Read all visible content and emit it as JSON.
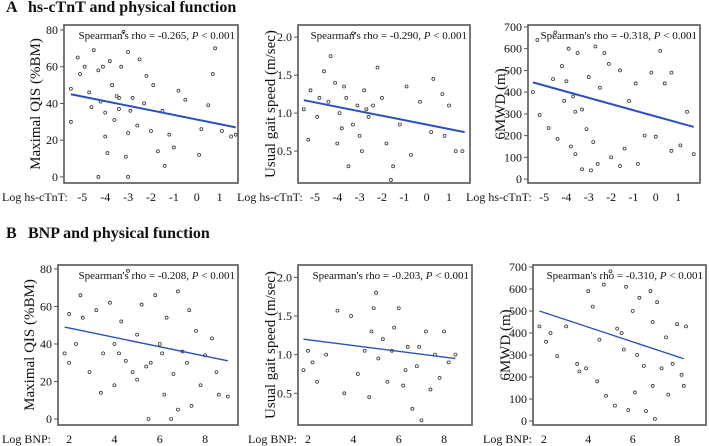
{
  "panels": {
    "A": {
      "letter": "A",
      "title": "hs-cTnT and physical function"
    },
    "B": {
      "letter": "B",
      "title": "BNP and physical function"
    }
  },
  "colors": {
    "regression_line": "#2a4fc0",
    "marker": "#333333",
    "frame": "#555555"
  },
  "chart_data": [
    {
      "id": "A1",
      "type": "scatter",
      "panel": "A",
      "xlabel": "Log hs-cTnT:",
      "ylabel": "Maximal QIS (%BM)",
      "xlim": [
        -5.8,
        1.8
      ],
      "ylim": [
        -3.3,
        82.7
      ],
      "xticks": [
        "-5",
        "-4",
        "-3",
        "-2",
        "-1",
        "0",
        "1"
      ],
      "yticks": [
        "0",
        "20",
        "40",
        "60",
        "80"
      ],
      "annotation": {
        "rho_text": "Spearman's rho = -0.265, ",
        "p_label": "P",
        "p_text": " < 0.001"
      },
      "regression": [
        [
          -5.5,
          45
        ],
        [
          1.7,
          27
        ]
      ],
      "points": [
        [
          -5.5,
          48
        ],
        [
          -5.5,
          30
        ],
        [
          -5.2,
          65
        ],
        [
          -5.1,
          56
        ],
        [
          -4.9,
          60
        ],
        [
          -4.7,
          46
        ],
        [
          -4.5,
          69
        ],
        [
          -4.3,
          58
        ],
        [
          -4.2,
          41
        ],
        [
          -4.1,
          60
        ],
        [
          -4.0,
          22
        ],
        [
          -4.0,
          35
        ],
        [
          -3.8,
          63
        ],
        [
          -3.7,
          50
        ],
        [
          -3.6,
          31
        ],
        [
          -3.5,
          44
        ],
        [
          -3.4,
          37
        ],
        [
          -3.3,
          60
        ],
        [
          -3.2,
          79
        ],
        [
          -3.1,
          11
        ],
        [
          -3.0,
          68
        ],
        [
          -3.0,
          24
        ],
        [
          -2.8,
          43
        ],
        [
          -2.6,
          28
        ],
        [
          -2.5,
          64
        ],
        [
          -2.3,
          40
        ],
        [
          -2.2,
          55
        ],
        [
          -2.0,
          25
        ],
        [
          -1.9,
          50
        ],
        [
          -1.7,
          14
        ],
        [
          -1.5,
          36
        ],
        [
          -1.4,
          6
        ],
        [
          -1.2,
          23
        ],
        [
          -1.0,
          16
        ],
        [
          -0.8,
          47
        ],
        [
          -0.5,
          42
        ],
        [
          0.1,
          12
        ],
        [
          0.2,
          26
        ],
        [
          0.5,
          39
        ],
        [
          0.7,
          56
        ],
        [
          0.8,
          70
        ],
        [
          1.1,
          25
        ],
        [
          1.5,
          22
        ],
        [
          1.7,
          23
        ],
        [
          -4.3,
          0
        ],
        [
          -3.0,
          0
        ],
        [
          -3.9,
          13
        ],
        [
          -2.9,
          36
        ],
        [
          -4.6,
          38
        ],
        [
          -3.4,
          43
        ]
      ]
    },
    {
      "id": "A2",
      "type": "scatter",
      "panel": "A",
      "xlabel": "Log hs-cTnT:",
      "ylabel": "Usual gait speed (m/sec)",
      "xlim": [
        -5.76,
        1.94
      ],
      "ylim": [
        0.08,
        2.16
      ],
      "xticks": [
        "-5",
        "-4",
        "-3",
        "-2",
        "-1",
        "0",
        "1"
      ],
      "yticks": [
        "0.5",
        "1.0",
        "1.5",
        "2.0"
      ],
      "annotation": {
        "rho_text": "Spearman's rho = -0.290, ",
        "p_label": "P",
        "p_text": " < 0.001"
      },
      "regression": [
        [
          -5.5,
          1.17
        ],
        [
          1.7,
          0.75
        ]
      ],
      "points": [
        [
          -5.5,
          1.05
        ],
        [
          -5.3,
          0.65
        ],
        [
          -5.2,
          1.3
        ],
        [
          -4.9,
          0.95
        ],
        [
          -4.6,
          1.55
        ],
        [
          -4.3,
          1.75
        ],
        [
          -4.1,
          1.4
        ],
        [
          -4.0,
          0.6
        ],
        [
          -3.9,
          1.0
        ],
        [
          -3.7,
          1.35
        ],
        [
          -3.6,
          1.2
        ],
        [
          -3.5,
          0.3
        ],
        [
          -3.3,
          2.05
        ],
        [
          -3.3,
          0.85
        ],
        [
          -3.1,
          1.1
        ],
        [
          -3.0,
          0.7
        ],
        [
          -2.8,
          1.3
        ],
        [
          -2.6,
          0.95
        ],
        [
          -2.4,
          1.1
        ],
        [
          -2.2,
          1.6
        ],
        [
          -2.0,
          1.2
        ],
        [
          -1.8,
          0.6
        ],
        [
          -1.6,
          0.12
        ],
        [
          -1.5,
          0.3
        ],
        [
          -1.2,
          0.85
        ],
        [
          -0.9,
          1.35
        ],
        [
          -0.7,
          0.45
        ],
        [
          -0.3,
          1.15
        ],
        [
          0.2,
          0.75
        ],
        [
          0.3,
          1.45
        ],
        [
          0.7,
          1.25
        ],
        [
          0.8,
          0.7
        ],
        [
          1.0,
          1.1
        ],
        [
          1.3,
          0.5
        ],
        [
          1.6,
          0.5
        ],
        [
          -4.4,
          1.15
        ],
        [
          -3.8,
          0.8
        ],
        [
          -2.7,
          1.05
        ],
        [
          -2.9,
          0.5
        ],
        [
          -4.8,
          1.2
        ]
      ]
    },
    {
      "id": "A3",
      "type": "scatter",
      "panel": "A",
      "xlabel": "Log hs-cTnT:",
      "ylabel": "6MWD (m)",
      "xlim": [
        -5.72,
        1.98
      ],
      "ylim": [
        -18,
        709
      ],
      "xticks": [
        "-5",
        "-4",
        "-3",
        "-2",
        "-1",
        "0",
        "1"
      ],
      "yticks": [
        "0",
        "100",
        "200",
        "300",
        "400",
        "500",
        "600",
        "700"
      ],
      "annotation": {
        "rho_text": "Spearman's rho = -0.318, ",
        "p_label": "P",
        "p_text": " < 0.001"
      },
      "regression": [
        [
          -5.5,
          445
        ],
        [
          1.7,
          240
        ]
      ],
      "points": [
        [
          -5.5,
          400
        ],
        [
          -5.3,
          640
        ],
        [
          -5.2,
          295
        ],
        [
          -4.8,
          235
        ],
        [
          -4.5,
          675
        ],
        [
          -4.4,
          185
        ],
        [
          -4.2,
          520
        ],
        [
          -4.0,
          450
        ],
        [
          -3.9,
          600
        ],
        [
          -3.8,
          150
        ],
        [
          -3.7,
          380
        ],
        [
          -3.6,
          115
        ],
        [
          -3.5,
          580
        ],
        [
          -3.3,
          45
        ],
        [
          -3.3,
          320
        ],
        [
          -3.1,
          230
        ],
        [
          -2.9,
          40
        ],
        [
          -2.8,
          170
        ],
        [
          -2.7,
          610
        ],
        [
          -2.6,
          70
        ],
        [
          -2.5,
          420
        ],
        [
          -2.3,
          580
        ],
        [
          -2.1,
          530
        ],
        [
          -2.0,
          100
        ],
        [
          -1.6,
          500
        ],
        [
          -1.6,
          60
        ],
        [
          -1.4,
          140
        ],
        [
          -1.2,
          360
        ],
        [
          -0.9,
          440
        ],
        [
          -0.8,
          70
        ],
        [
          -0.5,
          200
        ],
        [
          -0.2,
          490
        ],
        [
          0.0,
          195
        ],
        [
          0.2,
          590
        ],
        [
          0.4,
          440
        ],
        [
          0.7,
          490
        ],
        [
          0.7,
          130
        ],
        [
          1.1,
          155
        ],
        [
          1.4,
          310
        ],
        [
          1.7,
          115
        ],
        [
          -3.6,
          310
        ],
        [
          -4.1,
          360
        ],
        [
          -3.0,
          470
        ],
        [
          -4.6,
          460
        ]
      ]
    },
    {
      "id": "B1",
      "type": "scatter",
      "panel": "B",
      "xlabel": "Log BNP:",
      "ylabel": "Maximal QIS (%BM)",
      "xlim": [
        1.51,
        9.45
      ],
      "ylim": [
        -3.2,
        82.1
      ],
      "xticks": [
        "2",
        "4",
        "6",
        "8"
      ],
      "yticks": [
        "0",
        "20",
        "40",
        "60",
        "80"
      ],
      "annotation": {
        "rho_text": "Spearman's rho = -0.208, ",
        "p_label": "P",
        "p_text": " < 0.001"
      },
      "regression": [
        [
          1.8,
          49
        ],
        [
          9.0,
          31
        ]
      ],
      "points": [
        [
          1.8,
          35
        ],
        [
          2.0,
          30
        ],
        [
          2.0,
          56
        ],
        [
          2.3,
          40
        ],
        [
          2.5,
          66
        ],
        [
          2.6,
          54
        ],
        [
          2.9,
          25
        ],
        [
          3.2,
          58
        ],
        [
          3.4,
          14
        ],
        [
          3.5,
          35
        ],
        [
          3.8,
          62
        ],
        [
          4.0,
          40
        ],
        [
          4.0,
          18
        ],
        [
          4.3,
          52
        ],
        [
          4.6,
          79
        ],
        [
          4.8,
          25
        ],
        [
          5.0,
          45
        ],
        [
          5.2,
          61
        ],
        [
          5.5,
          0
        ],
        [
          5.6,
          30
        ],
        [
          5.8,
          66
        ],
        [
          6.0,
          40
        ],
        [
          6.2,
          13
        ],
        [
          6.3,
          54
        ],
        [
          6.5,
          0
        ],
        [
          6.6,
          24
        ],
        [
          6.8,
          68
        ],
        [
          6.8,
          5
        ],
        [
          7.0,
          36
        ],
        [
          7.3,
          58
        ],
        [
          7.4,
          7
        ],
        [
          7.6,
          47
        ],
        [
          7.8,
          18
        ],
        [
          8.0,
          34
        ],
        [
          8.3,
          43
        ],
        [
          8.6,
          13
        ],
        [
          9.0,
          12
        ],
        [
          8.5,
          25
        ],
        [
          4.5,
          31
        ],
        [
          5.4,
          28
        ],
        [
          6.1,
          35
        ],
        [
          5.0,
          21
        ],
        [
          7.2,
          30
        ],
        [
          4.2,
          35
        ]
      ]
    },
    {
      "id": "B2",
      "type": "scatter",
      "panel": "B",
      "xlabel": "Log BNP:",
      "ylabel": "Usual gait speed (m/sec)",
      "xlim": [
        1.56,
        9.23
      ],
      "ylim": [
        0.09,
        2.16
      ],
      "xticks": [
        "2",
        "4",
        "6",
        "8"
      ],
      "yticks": [
        "0.5",
        "1.0",
        "1.5",
        "2.0"
      ],
      "annotation": {
        "rho_text": "Spearman's rho = -0.203, ",
        "p_label": "P",
        "p_text": " < 0.001"
      },
      "regression": [
        [
          1.8,
          1.2
        ],
        [
          8.5,
          0.95
        ]
      ],
      "points": [
        [
          1.8,
          0.8
        ],
        [
          2.0,
          1.05
        ],
        [
          2.2,
          0.9
        ],
        [
          2.4,
          0.65
        ],
        [
          2.8,
          1.0
        ],
        [
          3.3,
          1.57
        ],
        [
          3.6,
          0.5
        ],
        [
          3.9,
          1.5
        ],
        [
          4.2,
          0.75
        ],
        [
          4.5,
          1.05
        ],
        [
          4.7,
          0.45
        ],
        [
          4.9,
          1.6
        ],
        [
          5.0,
          1.8
        ],
        [
          5.3,
          1.2
        ],
        [
          5.5,
          0.65
        ],
        [
          5.8,
          1.35
        ],
        [
          6.0,
          1.6
        ],
        [
          6.2,
          0.6
        ],
        [
          6.4,
          1.1
        ],
        [
          6.6,
          0.3
        ],
        [
          6.8,
          0.85
        ],
        [
          7.0,
          0.15
        ],
        [
          7.2,
          1.3
        ],
        [
          7.4,
          0.55
        ],
        [
          7.6,
          1.0
        ],
        [
          7.8,
          0.7
        ],
        [
          8.0,
          1.3
        ],
        [
          8.2,
          0.9
        ],
        [
          8.5,
          1.0
        ],
        [
          5.1,
          0.95
        ],
        [
          5.7,
          1.05
        ],
        [
          6.3,
          0.8
        ],
        [
          4.8,
          1.3
        ],
        [
          6.9,
          1.1
        ]
      ]
    },
    {
      "id": "B3",
      "type": "scatter",
      "panel": "B",
      "xlabel": "Log BNP:",
      "ylabel": "6MWD (m)",
      "xlim": [
        1.51,
        9.3
      ],
      "ylim": [
        -18,
        709
      ],
      "xticks": [
        "2",
        "4",
        "6",
        "8"
      ],
      "yticks": [
        "0",
        "100",
        "200",
        "300",
        "400",
        "500",
        "600",
        "700"
      ],
      "annotation": {
        "rho_text": "Spearman's rho = -0.310, ",
        "p_label": "P",
        "p_text": " < 0.001"
      },
      "regression": [
        [
          1.8,
          500
        ],
        [
          8.3,
          283
        ]
      ],
      "points": [
        [
          1.8,
          430
        ],
        [
          2.1,
          360
        ],
        [
          2.3,
          400
        ],
        [
          2.6,
          295
        ],
        [
          3.0,
          430
        ],
        [
          3.5,
          260
        ],
        [
          3.6,
          225
        ],
        [
          3.9,
          240
        ],
        [
          4.0,
          590
        ],
        [
          4.2,
          520
        ],
        [
          4.4,
          180
        ],
        [
          4.7,
          620
        ],
        [
          4.8,
          115
        ],
        [
          5.0,
          680
        ],
        [
          5.2,
          70
        ],
        [
          5.3,
          420
        ],
        [
          5.6,
          325
        ],
        [
          5.7,
          610
        ],
        [
          5.8,
          50
        ],
        [
          6.0,
          500
        ],
        [
          6.1,
          130
        ],
        [
          6.3,
          560
        ],
        [
          6.5,
          250
        ],
        [
          6.6,
          45
        ],
        [
          6.8,
          590
        ],
        [
          6.9,
          160
        ],
        [
          7.0,
          10
        ],
        [
          7.1,
          540
        ],
        [
          7.3,
          240
        ],
        [
          7.5,
          380
        ],
        [
          7.6,
          120
        ],
        [
          7.8,
          260
        ],
        [
          8.0,
          440
        ],
        [
          8.2,
          210
        ],
        [
          8.3,
          160
        ],
        [
          8.4,
          430
        ],
        [
          5.5,
          400
        ],
        [
          6.2,
          300
        ],
        [
          4.5,
          370
        ],
        [
          6.9,
          450
        ]
      ]
    }
  ]
}
